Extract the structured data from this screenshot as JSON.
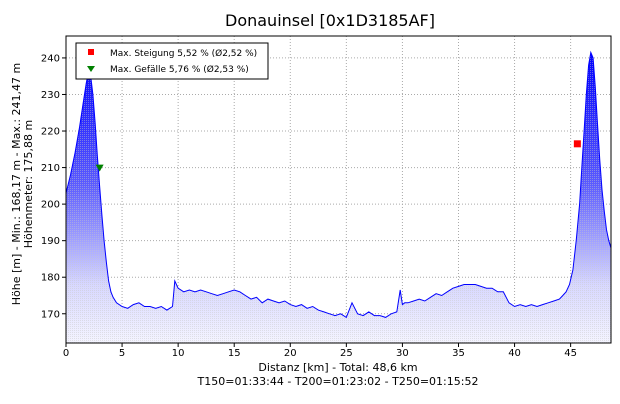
{
  "chart_data": {
    "type": "area",
    "title": "Donauinsel [0x1D3185AF]",
    "ylabel_line1": "Höhe [m] - Min.: 168,17 m - Max.: 241,47 m",
    "ylabel_line2": "Höhenmeter: 175,88 m",
    "xlabel": "Distanz [km] - Total: 48,6 km",
    "footer": "T150=01:33:44 - T200=01:23:02 - T250=01:15:52",
    "xlim": [
      0,
      48.6
    ],
    "ylim": [
      162,
      246
    ],
    "x_ticks": [
      0,
      5,
      10,
      15,
      20,
      25,
      30,
      35,
      40,
      45
    ],
    "y_ticks": [
      170,
      180,
      190,
      200,
      210,
      220,
      230,
      240
    ],
    "grid": true,
    "legend_position": "top-left",
    "legend": [
      {
        "label": "Max. Steigung 5,52 % (Ø2,52 %)",
        "marker": "square",
        "color": "#ff0000"
      },
      {
        "label": "Max. Gefälle 5,76 % (Ø2,53 %)",
        "marker": "triangle-down",
        "color": "#008000"
      }
    ],
    "markers": [
      {
        "name": "Max. Steigung",
        "x": 45.6,
        "y": 216.5,
        "shape": "square",
        "color": "#ff0000"
      },
      {
        "name": "Max. Gefälle",
        "x": 3.0,
        "y": 210,
        "shape": "triangle-down",
        "color": "#008000"
      }
    ],
    "colors": {
      "line": "#0000ff",
      "fill_top": "#0000ff",
      "fill_bottom": "#ffffff"
    },
    "series": [
      {
        "x": [
          0,
          0.4,
          0.8,
          1.2,
          1.5,
          1.8,
          2.0,
          2.2,
          2.4,
          2.6,
          2.8,
          3.0,
          3.2,
          3.4,
          3.6,
          3.8,
          4.0,
          4.2,
          4.5,
          5.0,
          5.5,
          6.0,
          6.5,
          7.0,
          7.5,
          8.0,
          8.5,
          9.0,
          9.5,
          9.7,
          10.0,
          10.5,
          11.0,
          11.5,
          12.0,
          12.5,
          13.0,
          13.5,
          14.0,
          14.5,
          15.0,
          15.5,
          16.0,
          16.5,
          17.0,
          17.5,
          18.0,
          18.5,
          19.0,
          19.5,
          20.0,
          20.5,
          21.0,
          21.5,
          22.0,
          22.5,
          23.0,
          23.5,
          24.0,
          24.5,
          25.0,
          25.5,
          26.0,
          26.5,
          27.0,
          27.5,
          28.0,
          28.5,
          29.0,
          29.5,
          29.8,
          30.0,
          30.2,
          30.5,
          31.0,
          31.5,
          32.0,
          32.5,
          33.0,
          33.5,
          34.0,
          34.5,
          35.0,
          35.5,
          36.0,
          36.5,
          37.0,
          37.5,
          38.0,
          38.5,
          39.0,
          39.5,
          40.0,
          40.5,
          41.0,
          41.5,
          42.0,
          42.5,
          43.0,
          43.5,
          44.0,
          44.3,
          44.6,
          44.9,
          45.2,
          45.5,
          45.8,
          46.0,
          46.2,
          46.4,
          46.6,
          46.8,
          47.0,
          47.2,
          47.4,
          47.6,
          47.8,
          48.0,
          48.2,
          48.4,
          48.6
        ],
        "y": [
          203,
          208,
          214,
          221,
          227,
          233,
          236,
          235,
          230,
          222,
          213,
          205,
          197,
          190,
          184,
          179,
          176,
          174.5,
          173,
          172,
          171.5,
          172.5,
          173,
          172,
          172,
          171.5,
          172,
          171,
          172,
          179,
          177,
          176,
          176.5,
          176,
          176.5,
          176,
          175.5,
          175,
          175.5,
          176,
          176.5,
          176,
          175,
          174,
          174.5,
          173,
          174,
          173.5,
          173,
          173.5,
          172.5,
          172,
          172.5,
          171.5,
          172,
          171,
          170.5,
          170,
          169.5,
          170,
          169,
          173,
          170,
          169.5,
          170.5,
          169.5,
          169.5,
          169,
          170,
          170.5,
          176.5,
          172.5,
          173,
          173,
          173.5,
          174,
          173.5,
          174.5,
          175.5,
          175,
          176,
          177,
          177.5,
          178,
          178,
          178,
          177.5,
          177,
          177,
          176,
          176,
          173,
          172,
          172.5,
          172,
          172.5,
          172,
          172.5,
          173,
          173.5,
          174,
          175,
          176,
          178,
          182,
          190,
          200,
          210,
          220,
          230,
          238,
          241.5,
          240,
          232,
          222,
          212,
          204,
          198,
          193,
          190,
          188
        ]
      }
    ]
  }
}
